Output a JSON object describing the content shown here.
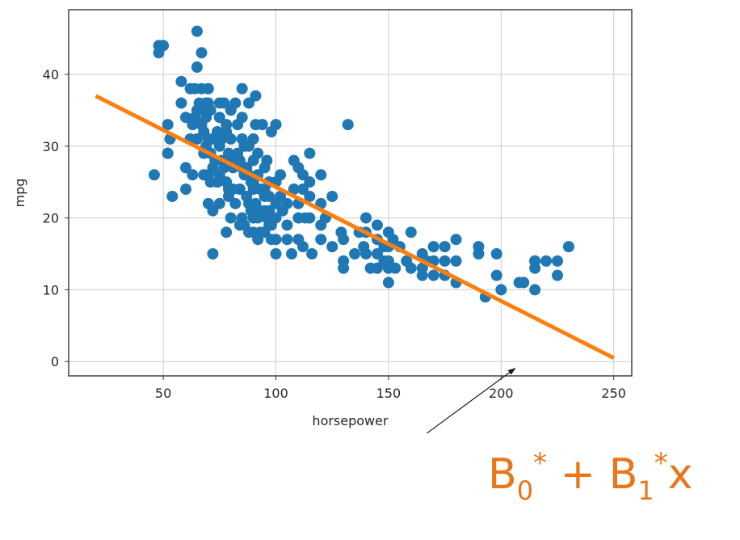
{
  "chart_data": {
    "type": "scatter",
    "xlabel": "horsepower",
    "ylabel": "mpg",
    "xlim": [
      8,
      258
    ],
    "ylim": [
      -2,
      49
    ],
    "xticks": [
      50,
      100,
      150,
      200,
      250
    ],
    "yticks": [
      0,
      10,
      20,
      30,
      40
    ],
    "grid": true,
    "colors": {
      "points": "#1f77b4",
      "line": "#ff7f0e",
      "annotation": "#e8761b"
    },
    "series": [
      {
        "type": "scatter",
        "x": [
          46,
          48,
          48,
          50,
          52,
          52,
          52,
          53,
          54,
          58,
          58,
          60,
          60,
          60,
          62,
          62,
          63,
          63,
          64,
          64,
          65,
          65,
          65,
          65,
          66,
          67,
          67,
          67,
          68,
          68,
          68,
          68,
          69,
          69,
          69,
          70,
          70,
          70,
          70,
          70,
          71,
          71,
          71,
          72,
          72,
          72,
          72,
          73,
          74,
          74,
          75,
          75,
          75,
          75,
          75,
          76,
          76,
          77,
          77,
          78,
          78,
          78,
          78,
          79,
          79,
          79,
          80,
          80,
          80,
          80,
          81,
          81,
          82,
          82,
          83,
          83,
          84,
          84,
          84,
          85,
          85,
          85,
          85,
          85,
          86,
          86,
          86,
          87,
          87,
          88,
          88,
          88,
          88,
          88,
          89,
          89,
          90,
          90,
          90,
          90,
          90,
          90,
          91,
          91,
          91,
          92,
          92,
          92,
          92,
          93,
          93,
          93,
          94,
          95,
          95,
          95,
          95,
          95,
          96,
          96,
          97,
          97,
          97,
          97,
          98,
          98,
          98,
          100,
          100,
          100,
          100,
          100,
          100,
          102,
          102,
          103,
          105,
          105,
          105,
          107,
          108,
          108,
          110,
          110,
          110,
          110,
          112,
          112,
          112,
          113,
          115,
          115,
          115,
          115,
          116,
          120,
          120,
          120,
          120,
          122,
          125,
          125,
          129,
          130,
          130,
          130,
          132,
          135,
          137,
          139,
          140,
          140,
          140,
          142,
          145,
          145,
          145,
          145,
          148,
          148,
          150,
          150,
          150,
          150,
          150,
          152,
          153,
          155,
          158,
          160,
          160,
          165,
          165,
          165,
          167,
          170,
          170,
          170,
          175,
          175,
          175,
          180,
          180,
          180,
          190,
          190,
          193,
          198,
          198,
          200,
          208,
          210,
          215,
          215,
          215,
          215,
          220,
          225,
          225,
          230
        ],
        "y": [
          26,
          44,
          43,
          44,
          29,
          29,
          33,
          31,
          23,
          39,
          36,
          34,
          27,
          24,
          38,
          31,
          33,
          26,
          38,
          34,
          31,
          46,
          41,
          35,
          36,
          43,
          38,
          33,
          35,
          29,
          26,
          32,
          36,
          34,
          30,
          38,
          36,
          31,
          26,
          22,
          35,
          29,
          25,
          31,
          27,
          21,
          15,
          28,
          32,
          25,
          36,
          34,
          30,
          26,
          22,
          31,
          28,
          36,
          27,
          32,
          25,
          33,
          18,
          29,
          24,
          23,
          35,
          31,
          28,
          20,
          27,
          24,
          36,
          22,
          33,
          29,
          28,
          24,
          19,
          38,
          34,
          31,
          27,
          20,
          30,
          26,
          19,
          27,
          23,
          36,
          30,
          26,
          22,
          18,
          25,
          21,
          31,
          28,
          25,
          20,
          18,
          24,
          37,
          33,
          22,
          29,
          26,
          20,
          17,
          24,
          21,
          18,
          33,
          27,
          24,
          21,
          18,
          23,
          28,
          20,
          19,
          25,
          23,
          21,
          32,
          19,
          17,
          33,
          25,
          22,
          20,
          17,
          15,
          26,
          23,
          21,
          22,
          19,
          17,
          15,
          28,
          24,
          27,
          22,
          20,
          17,
          26,
          24,
          16,
          20,
          25,
          29,
          23,
          20,
          15,
          19,
          26,
          22,
          17,
          20,
          16,
          23,
          18,
          14,
          17,
          13,
          33,
          15,
          18,
          16,
          15,
          20,
          18,
          13,
          19,
          17,
          15,
          13,
          16,
          14,
          18,
          16,
          14,
          13,
          11,
          17,
          13,
          16,
          14,
          18,
          13,
          15,
          13,
          12,
          14,
          16,
          14,
          12,
          16,
          14,
          12,
          17,
          14,
          11,
          16,
          15,
          9,
          15,
          12,
          10,
          11,
          11,
          14,
          13,
          10,
          14,
          14,
          12,
          14,
          16
        ],
        "radius": 7
      },
      {
        "type": "line",
        "x": [
          20,
          250
        ],
        "y": [
          37,
          0.5
        ],
        "width": 5
      }
    ],
    "annotation": {
      "arrow_from": [
        167,
        -10
      ],
      "arrow_to": [
        206,
        -1
      ]
    }
  },
  "annotation": {
    "b": "B",
    "zero": "0",
    "plus": " + ",
    "one": "1",
    "star": "*",
    "x": "x"
  }
}
